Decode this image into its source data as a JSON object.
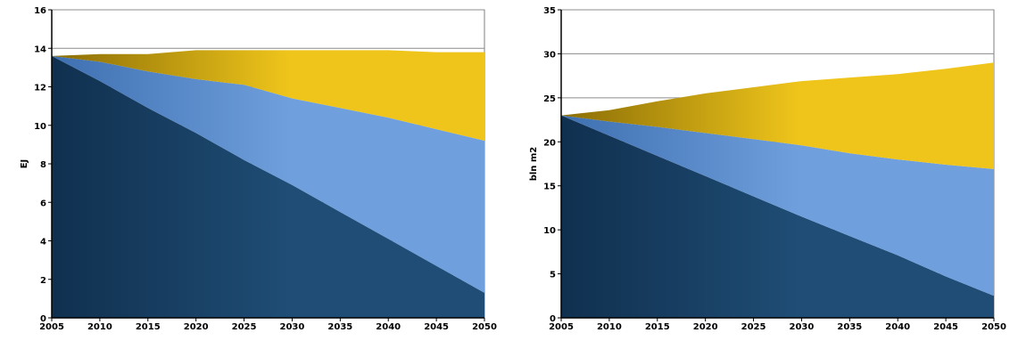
{
  "chart_data": [
    {
      "type": "area",
      "title": "",
      "xlabel": "",
      "ylabel": "EJ",
      "xlim": [
        2005,
        2050
      ],
      "ylim": [
        0,
        16
      ],
      "xticks": [
        2005,
        2010,
        2015,
        2020,
        2025,
        2030,
        2035,
        2040,
        2045,
        2050
      ],
      "yticks": [
        0,
        2,
        4,
        6,
        8,
        10,
        12,
        14,
        16
      ],
      "grid": true,
      "legend": "none",
      "x": [
        2005,
        2010,
        2015,
        2020,
        2025,
        2030,
        2035,
        2040,
        2045,
        2050
      ],
      "series": [
        {
          "values": [
            13.6,
            12.3,
            10.9,
            9.6,
            8.2,
            6.9,
            5.5,
            4.1,
            2.7,
            1.3
          ],
          "color": "#1f4d75"
        },
        {
          "values": [
            0,
            1.0,
            1.9,
            2.8,
            3.9,
            4.5,
            5.4,
            6.3,
            7.1,
            7.9
          ],
          "color": "#6f9fdc"
        },
        {
          "values": [
            0,
            0.4,
            0.9,
            1.5,
            1.8,
            2.5,
            3.0,
            3.5,
            4.0,
            4.6
          ],
          "color": "#efc51b"
        }
      ]
    },
    {
      "type": "area",
      "title": "",
      "xlabel": "",
      "ylabel": "bln m2",
      "xlim": [
        2005,
        2050
      ],
      "ylim": [
        0,
        35
      ],
      "xticks": [
        2005,
        2010,
        2015,
        2020,
        2025,
        2030,
        2035,
        2040,
        2045,
        2050
      ],
      "yticks": [
        0,
        5,
        10,
        15,
        20,
        25,
        30,
        35
      ],
      "grid": true,
      "legend": "none",
      "x": [
        2005,
        2010,
        2015,
        2020,
        2025,
        2030,
        2035,
        2040,
        2045,
        2050
      ],
      "series": [
        {
          "values": [
            23.0,
            20.7,
            18.4,
            16.1,
            13.8,
            11.5,
            9.3,
            7.1,
            4.7,
            2.5
          ],
          "color": "#1f4d75"
        },
        {
          "values": [
            0,
            1.6,
            3.3,
            4.9,
            6.5,
            8.1,
            9.4,
            10.9,
            12.7,
            14.4
          ],
          "color": "#6f9fdc"
        },
        {
          "values": [
            0,
            1.3,
            2.9,
            4.5,
            5.9,
            7.3,
            8.6,
            9.7,
            10.9,
            12.1
          ],
          "color": "#efc51b"
        }
      ]
    }
  ]
}
